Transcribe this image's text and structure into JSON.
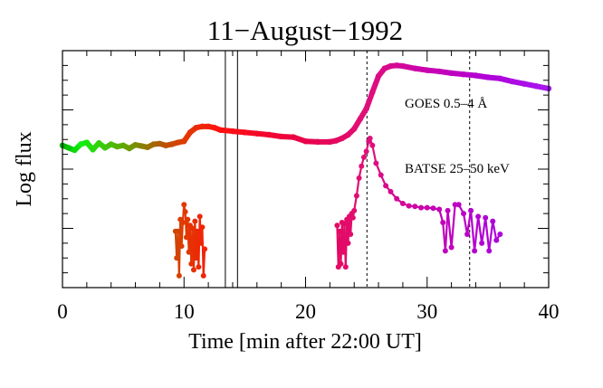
{
  "chart_data": {
    "type": "line",
    "title": "11−August−1992",
    "xlabel": "Time [min after 22:00 UT]",
    "ylabel": "Log flux",
    "xlim": [
      0,
      40
    ],
    "ylim": [
      0,
      4
    ],
    "xticks": [
      0,
      10,
      20,
      30,
      40
    ],
    "xtick_labels": [
      "0",
      "10",
      "20",
      "30",
      "40"
    ],
    "yticks_major": [
      1,
      2,
      3
    ],
    "y_tick_labels_shown": false,
    "grid": false,
    "solid_vlines": [
      13.4,
      14.4
    ],
    "dashed_vlines": [
      25.05,
      33.5
    ],
    "color_by_time": [
      {
        "t": 0,
        "color": "#00b000"
      },
      {
        "t": 1.5,
        "color": "#10f010"
      },
      {
        "t": 5,
        "color": "#60a800"
      },
      {
        "t": 8,
        "color": "#b05a00"
      },
      {
        "t": 10,
        "color": "#e03a00"
      },
      {
        "t": 13,
        "color": "#ff1010"
      },
      {
        "t": 20,
        "color": "#e8004a"
      },
      {
        "t": 25,
        "color": "#e0107a"
      },
      {
        "t": 30,
        "color": "#c800b0"
      },
      {
        "t": 35,
        "color": "#b000d8"
      },
      {
        "t": 40,
        "color": "#a818f0"
      }
    ],
    "series": [
      {
        "name": "GOES 0.5–4 Å",
        "label": "GOES 0.5–4 Å",
        "x": [
          0,
          0.5,
          1,
          1.5,
          2,
          2.5,
          3,
          3.5,
          4,
          4.5,
          5,
          5.5,
          6,
          6.5,
          7,
          7.5,
          8,
          8.5,
          9,
          9.5,
          10,
          10.5,
          11,
          11.5,
          12,
          12.5,
          13,
          14,
          15,
          16,
          17,
          18,
          19,
          20,
          21,
          22,
          22.5,
          23,
          23.5,
          24,
          24.5,
          25,
          25.5,
          26,
          26.5,
          27,
          27.5,
          28,
          29,
          30,
          31,
          32,
          33,
          34,
          35,
          36,
          37,
          38,
          39,
          40
        ],
        "y": [
          2.4,
          2.36,
          2.32,
          2.42,
          2.45,
          2.33,
          2.44,
          2.36,
          2.42,
          2.38,
          2.4,
          2.35,
          2.41,
          2.39,
          2.37,
          2.42,
          2.43,
          2.4,
          2.42,
          2.45,
          2.47,
          2.62,
          2.7,
          2.72,
          2.72,
          2.7,
          2.66,
          2.64,
          2.62,
          2.6,
          2.58,
          2.55,
          2.54,
          2.47,
          2.46,
          2.46,
          2.48,
          2.52,
          2.58,
          2.68,
          2.85,
          3.02,
          3.3,
          3.57,
          3.7,
          3.74,
          3.75,
          3.74,
          3.7,
          3.67,
          3.65,
          3.62,
          3.6,
          3.58,
          3.55,
          3.53,
          3.48,
          3.44,
          3.4,
          3.36
        ]
      },
      {
        "name": "BATSE 25–50 keV",
        "label": "BATSE 25–50 keV",
        "segments": [
          {
            "x": [
              9.3,
              9.4,
              9.5,
              9.6,
              9.7,
              9.8,
              9.9,
              10.0,
              10.1,
              10.2,
              10.3,
              10.4,
              10.5,
              10.6,
              10.7,
              10.8,
              10.9,
              11.0,
              11.1,
              11.2,
              11.3,
              11.4,
              11.5,
              11.6,
              11.7
            ],
            "y": [
              0.95,
              0.5,
              0.95,
              0.2,
              1.15,
              0.7,
              1.1,
              1.4,
              1.28,
              0.85,
              1.15,
              0.6,
              1.05,
              0.4,
              1.0,
              0.3,
              1.12,
              0.5,
              0.95,
              0.35,
              1.2,
              0.75,
              1.02,
              0.2,
              0.65
            ]
          },
          {
            "x": [
              22.6,
              22.7,
              22.8,
              22.9,
              23.0,
              23.1,
              23.2,
              23.3,
              23.4,
              23.5,
              23.6,
              23.7,
              23.8,
              23.9,
              24.0,
              24.2,
              24.4,
              24.6,
              24.8,
              25.0,
              25.2,
              25.3,
              25.5,
              25.8,
              26.2,
              26.6,
              27.0,
              27.5,
              28,
              28.5,
              29,
              29.5,
              30,
              30.5,
              31,
              31.3,
              31.5,
              31.7,
              32.0,
              32.3,
              32.6,
              33.0,
              33.3,
              33.6,
              33.9,
              34.2,
              34.5,
              34.8,
              35.1,
              35.4,
              35.7,
              36.0
            ],
            "y": [
              1.05,
              0.35,
              0.95,
              0.4,
              1.1,
              0.6,
              1.08,
              0.35,
              1.15,
              0.75,
              1.2,
              0.9,
              1.25,
              1.18,
              1.3,
              1.55,
              1.85,
              2.05,
              2.2,
              2.3,
              2.47,
              2.52,
              2.4,
              2.1,
              1.9,
              1.72,
              1.62,
              1.5,
              1.42,
              1.38,
              1.37,
              1.35,
              1.35,
              1.34,
              1.32,
              1.1,
              0.62,
              1.3,
              0.68,
              1.4,
              1.4,
              1.25,
              0.9,
              1.3,
              0.62,
              1.2,
              0.75,
              1.18,
              0.62,
              1.12,
              0.8,
              0.9
            ]
          }
        ]
      }
    ]
  }
}
